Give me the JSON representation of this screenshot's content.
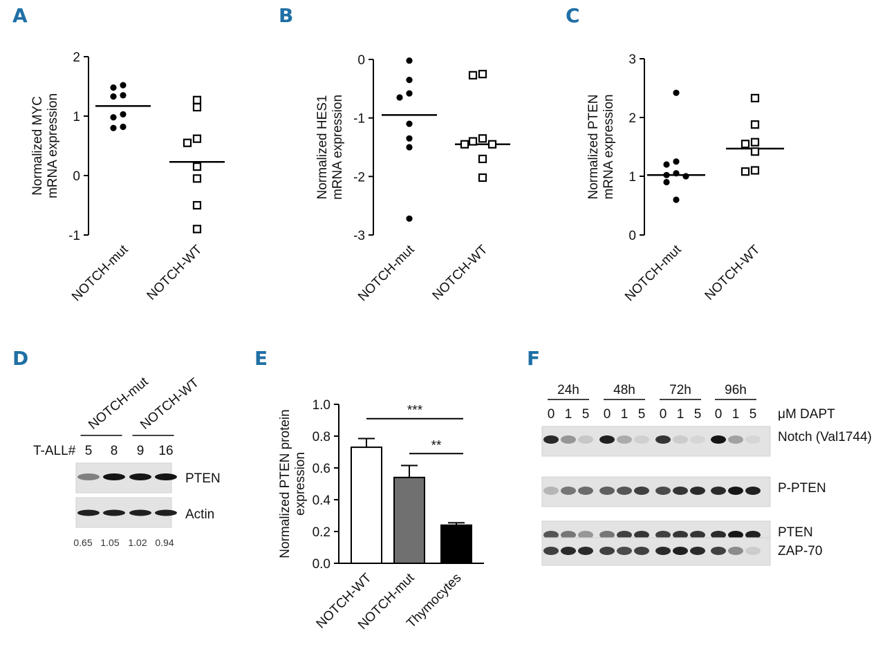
{
  "panel_letters": [
    "A",
    "B",
    "C",
    "D",
    "E",
    "F"
  ],
  "chart_data": [
    {
      "panel": "A",
      "type": "scatter",
      "ylabel": [
        "Normalized MYC",
        "mRNA expression"
      ],
      "yticks": [
        "2",
        "1",
        "0",
        "-1"
      ],
      "ylim": [
        -1,
        2
      ],
      "categories": [
        "NOTCH-mut",
        "NOTCH-WT"
      ],
      "series": [
        {
          "name": "NOTCH-mut",
          "marker": "filled-circle",
          "values": [
            1.52,
            1.48,
            1.35,
            1.33,
            1.03,
            0.98,
            0.82,
            0.8
          ],
          "median": 1.17
        },
        {
          "name": "NOTCH-WT",
          "marker": "open-square",
          "values": [
            1.27,
            1.15,
            0.62,
            0.55,
            0.15,
            -0.05,
            -0.5,
            -0.9
          ],
          "median": 0.23
        }
      ]
    },
    {
      "panel": "B",
      "type": "scatter",
      "ylabel": [
        "Normalized HES1",
        "mRNA expression"
      ],
      "yticks": [
        "0",
        "-1",
        "-2",
        "-3"
      ],
      "ylim": [
        -3,
        0
      ],
      "categories": [
        "NOTCH-mut",
        "NOTCH-WT"
      ],
      "series": [
        {
          "name": "NOTCH-mut",
          "marker": "filled-circle",
          "values": [
            -0.02,
            -0.35,
            -0.58,
            -0.65,
            -1.1,
            -1.35,
            -1.5,
            -2.72
          ],
          "median": -0.95
        },
        {
          "name": "NOTCH-WT",
          "marker": "open-square",
          "values": [
            -0.25,
            -0.27,
            -1.35,
            -1.4,
            -1.45,
            -1.45,
            -1.7,
            -2.02
          ],
          "median": -1.45
        }
      ]
    },
    {
      "panel": "C",
      "type": "scatter",
      "ylabel": [
        "Normalized PTEN",
        "mRNA expression"
      ],
      "yticks": [
        "3",
        "2",
        "1",
        "0"
      ],
      "ylim": [
        0,
        3
      ],
      "categories": [
        "NOTCH-mut",
        "NOTCH-WT"
      ],
      "series": [
        {
          "name": "NOTCH-mut",
          "marker": "filled-circle",
          "values": [
            2.42,
            1.25,
            1.2,
            1.05,
            1.02,
            1.0,
            0.9,
            0.6
          ],
          "median": 1.02
        },
        {
          "name": "NOTCH-WT",
          "marker": "open-square",
          "values": [
            2.33,
            1.88,
            1.58,
            1.55,
            1.42,
            1.1,
            1.08
          ],
          "median": 1.47
        }
      ]
    },
    {
      "panel": "E",
      "type": "bar",
      "ylabel": [
        "Normalized PTEN protein",
        "expression"
      ],
      "yticks": [
        "1.0",
        "0.8",
        "0.6",
        "0.4",
        "0.2",
        "0.0"
      ],
      "ylim": [
        0,
        1.0
      ],
      "categories": [
        "NOTCH-WT",
        "NOTCH-mut",
        "Thymocytes"
      ],
      "values": [
        0.73,
        0.54,
        0.24
      ],
      "errors": [
        0.055,
        0.075,
        0.015
      ],
      "colors": [
        "#ffffff",
        "#707070",
        "#000000"
      ],
      "significance": [
        {
          "from": "NOTCH-WT",
          "to": "Thymocytes",
          "label": "***",
          "y": 0.91
        },
        {
          "from": "NOTCH-mut",
          "to": "Thymocytes",
          "label": "**",
          "y": 0.69
        }
      ]
    }
  ],
  "panel_d": {
    "groups": [
      "NOTCH-mut",
      "NOTCH-WT"
    ],
    "row_label": "T-ALL#",
    "samples": [
      "5",
      "8",
      "9",
      "16"
    ],
    "bands": [
      "PTEN",
      "Actin"
    ],
    "pten_intensity": [
      0.45,
      0.95,
      0.95,
      0.95
    ],
    "actin_intensity": [
      0.9,
      0.9,
      0.9,
      0.9
    ],
    "quant": [
      "0.65",
      "1.05",
      "1.02",
      "0.94"
    ]
  },
  "panel_f": {
    "timepoints": [
      "24h",
      "48h",
      "72h",
      "96h"
    ],
    "doses": [
      "0",
      "1",
      "5"
    ],
    "dose_label": "μM DAPT",
    "blots": [
      {
        "label": "Notch (Val1744)",
        "intensity": [
          0.85,
          0.35,
          0.12,
          0.9,
          0.25,
          0.08,
          0.8,
          0.1,
          0.05,
          0.95,
          0.3,
          0.05
        ]
      },
      {
        "label": "P-PTEN",
        "intensity": [
          0.2,
          0.5,
          0.55,
          0.6,
          0.65,
          0.75,
          0.7,
          0.8,
          0.85,
          0.85,
          0.95,
          0.9
        ]
      },
      {
        "label": "PTEN",
        "intensity": [
          0.65,
          0.5,
          0.35,
          0.5,
          0.75,
          0.8,
          0.75,
          0.8,
          0.8,
          0.85,
          0.95,
          0.9
        ]
      },
      {
        "label": "ZAP-70",
        "intensity": [
          0.75,
          0.85,
          0.85,
          0.75,
          0.7,
          0.75,
          0.85,
          0.9,
          0.85,
          0.75,
          0.4,
          0.1
        ]
      }
    ]
  }
}
